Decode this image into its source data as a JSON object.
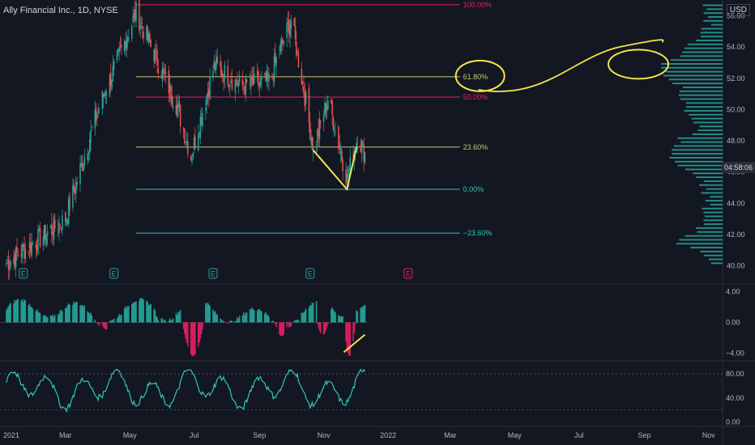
{
  "header": {
    "symbol_title": "Ally Financial Inc., 1D, NYSE",
    "currency": "USD",
    "countdown": "04:58:06"
  },
  "colors": {
    "background": "#131722",
    "up": "#26a69a",
    "down": "#ef5350",
    "annotation": "#f5e34b",
    "fib_red": "#e91e63",
    "fib_yellow": "#c8c86e",
    "fib_teal": "#2fc8b4",
    "earnings_teal": "#26a69a",
    "earnings_pink": "#e91e63",
    "axis_text": "#b2b5be"
  },
  "chart_data": [
    {
      "type": "candlestick",
      "title": "Ally Financial Inc., 1D, NYSE",
      "yaxis_ticks": [
        "56.00",
        "54.00",
        "52.00",
        "50.00",
        "48.00",
        "46.00",
        "44.00",
        "42.00",
        "40.00"
      ],
      "ylim": [
        39.0,
        56.8
      ],
      "xaxis_ticks": [
        "2021",
        "Mar",
        "May",
        "Jul",
        "Sep",
        "Nov",
        "2022",
        "Mar",
        "May",
        "Jul",
        "Sep",
        "Nov"
      ],
      "key_prices": [
        {
          "date": "2021-01-04",
          "price": 40.2
        },
        {
          "date": "2021-03-01",
          "price": 43.0
        },
        {
          "date": "2021-04-01",
          "price": 50.0
        },
        {
          "date": "2021-05-07",
          "price": 56.2
        },
        {
          "date": "2021-06-15",
          "price": 50.2
        },
        {
          "date": "2021-06-28",
          "price": 47.0
        },
        {
          "date": "2021-07-20",
          "price": 52.8
        },
        {
          "date": "2021-08-15",
          "price": 51.5
        },
        {
          "date": "2021-09-10",
          "price": 51.8
        },
        {
          "date": "2021-10-01",
          "price": 55.8
        },
        {
          "date": "2021-10-15",
          "price": 50.5
        },
        {
          "date": "2021-10-22",
          "price": 47.4
        },
        {
          "date": "2021-11-05",
          "price": 50.7
        },
        {
          "date": "2021-11-23",
          "price": 45.6
        },
        {
          "date": "2021-12-03",
          "price": 48.3
        },
        {
          "date": "2021-12-10",
          "price": 47.2
        }
      ],
      "fib_levels": [
        {
          "label": "100.00%",
          "price": 56.7,
          "color": "#e91e63"
        },
        {
          "label": "61.80%",
          "price": 52.1,
          "color": "#c8c86e"
        },
        {
          "label": "50.00%",
          "price": 50.8,
          "color": "#e91e63"
        },
        {
          "label": "23.60%",
          "price": 47.6,
          "color": "#c8c86e"
        },
        {
          "label": "0.00%",
          "price": 44.9,
          "color": "#2fc8b4"
        },
        {
          "label": "−23.60%",
          "price": 42.1,
          "color": "#2fc8b4"
        }
      ],
      "earnings_markers": [
        {
          "label": "E",
          "date": "2021-01-20",
          "color": "#26a69a"
        },
        {
          "label": "E",
          "date": "2021-04-16",
          "color": "#26a69a"
        },
        {
          "label": "E",
          "date": "2021-07-19",
          "color": "#26a69a"
        },
        {
          "label": "E",
          "date": "2021-10-19",
          "color": "#26a69a"
        },
        {
          "label": "E",
          "date": "2022-01-20",
          "color": "#e91e63"
        }
      ],
      "volume_profile": "shown on right side, peak near 52.5 and 47.0"
    },
    {
      "type": "histogram",
      "title": "",
      "yaxis_ticks": [
        "4.00",
        "0.00",
        "−4.00"
      ],
      "ylim": [
        -4.5,
        4.5
      ],
      "note": "momentum oscillator; green positive bars, red negative dips in Jun, Sep, Nov"
    },
    {
      "type": "line",
      "title": "",
      "yaxis_ticks": [
        "80.00",
        "40.00",
        "0.00"
      ],
      "ylim": [
        -2,
        95
      ],
      "reference_lines": [
        80,
        20
      ],
      "note": "oscillator line oscillating between ~20 and ~85"
    }
  ],
  "annotations": [
    {
      "kind": "circle",
      "around": "61.80%"
    },
    {
      "kind": "circle",
      "around": "volume profile peak"
    },
    {
      "kind": "connecting-curve",
      "from": "61.80% circle",
      "to": "volume profile circle"
    },
    {
      "kind": "trend-line",
      "pane": "price",
      "desc": "lower low Nov"
    },
    {
      "kind": "trend-line",
      "pane": "histogram",
      "desc": "higher low divergence"
    }
  ]
}
